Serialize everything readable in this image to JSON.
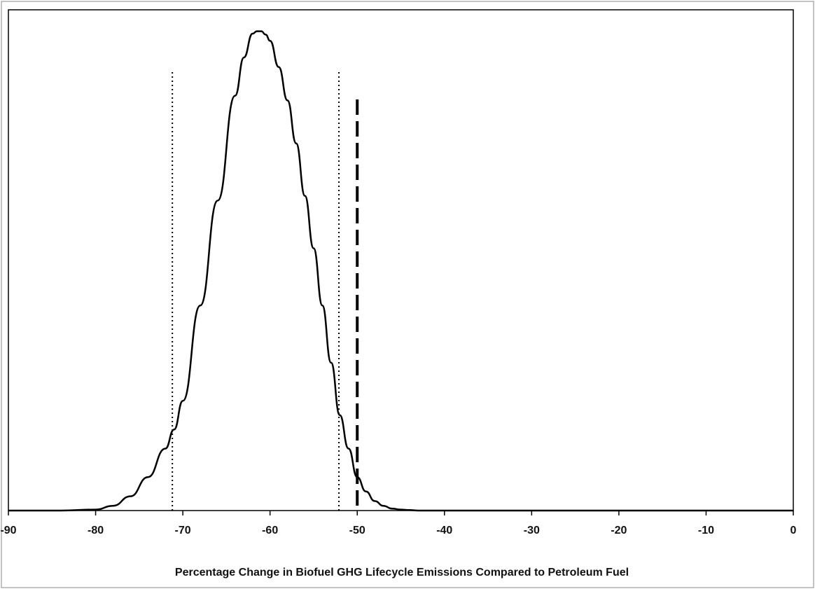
{
  "chart_data": {
    "type": "line",
    "title": "",
    "xlabel": "Percentage Change in Biofuel GHG Lifecycle Emissions Compared to Petroleum Fuel",
    "ylabel": "",
    "xlim": [
      -90,
      0
    ],
    "ylim": [
      0,
      1.05
    ],
    "x_ticks": [
      -90,
      -80,
      -70,
      -60,
      -50,
      -40,
      -30,
      -20,
      -10,
      0
    ],
    "x_tick_labels": [
      "-90",
      "-80",
      "-70",
      "-60",
      "-50",
      "-40",
      "-30",
      "-20",
      "-10",
      "0"
    ],
    "grid": false,
    "legend": "none",
    "series": [
      {
        "x": [
          -90,
          -84,
          -80,
          -78,
          -76,
          -74,
          -72,
          -71,
          -70,
          -68,
          -66,
          -64,
          -63,
          -62,
          -61.5,
          -61,
          -60.5,
          -60,
          -59,
          -58,
          -57,
          -56,
          -55,
          -54,
          -53,
          -52,
          -51,
          -50,
          -49,
          -48,
          -47,
          -46,
          -45,
          -44,
          -43,
          -40,
          0
        ],
        "y": [
          0,
          0,
          0.002,
          0.01,
          0.03,
          0.07,
          0.13,
          0.17,
          0.23,
          0.43,
          0.65,
          0.87,
          0.95,
          1.0,
          1.005,
          1.005,
          0.998,
          0.985,
          0.93,
          0.86,
          0.77,
          0.66,
          0.55,
          0.43,
          0.31,
          0.2,
          0.13,
          0.07,
          0.04,
          0.02,
          0.01,
          0.004,
          0.002,
          0.001,
          0,
          0,
          0
        ]
      }
    ],
    "reference_lines": [
      {
        "x": -71.2,
        "style": "dotted"
      },
      {
        "x": -52.1,
        "style": "dotted"
      },
      {
        "x": -50.0,
        "style": "dashed"
      }
    ],
    "colors": {
      "line": "#000000",
      "axis": "#000000",
      "background": "#ffffff"
    }
  }
}
